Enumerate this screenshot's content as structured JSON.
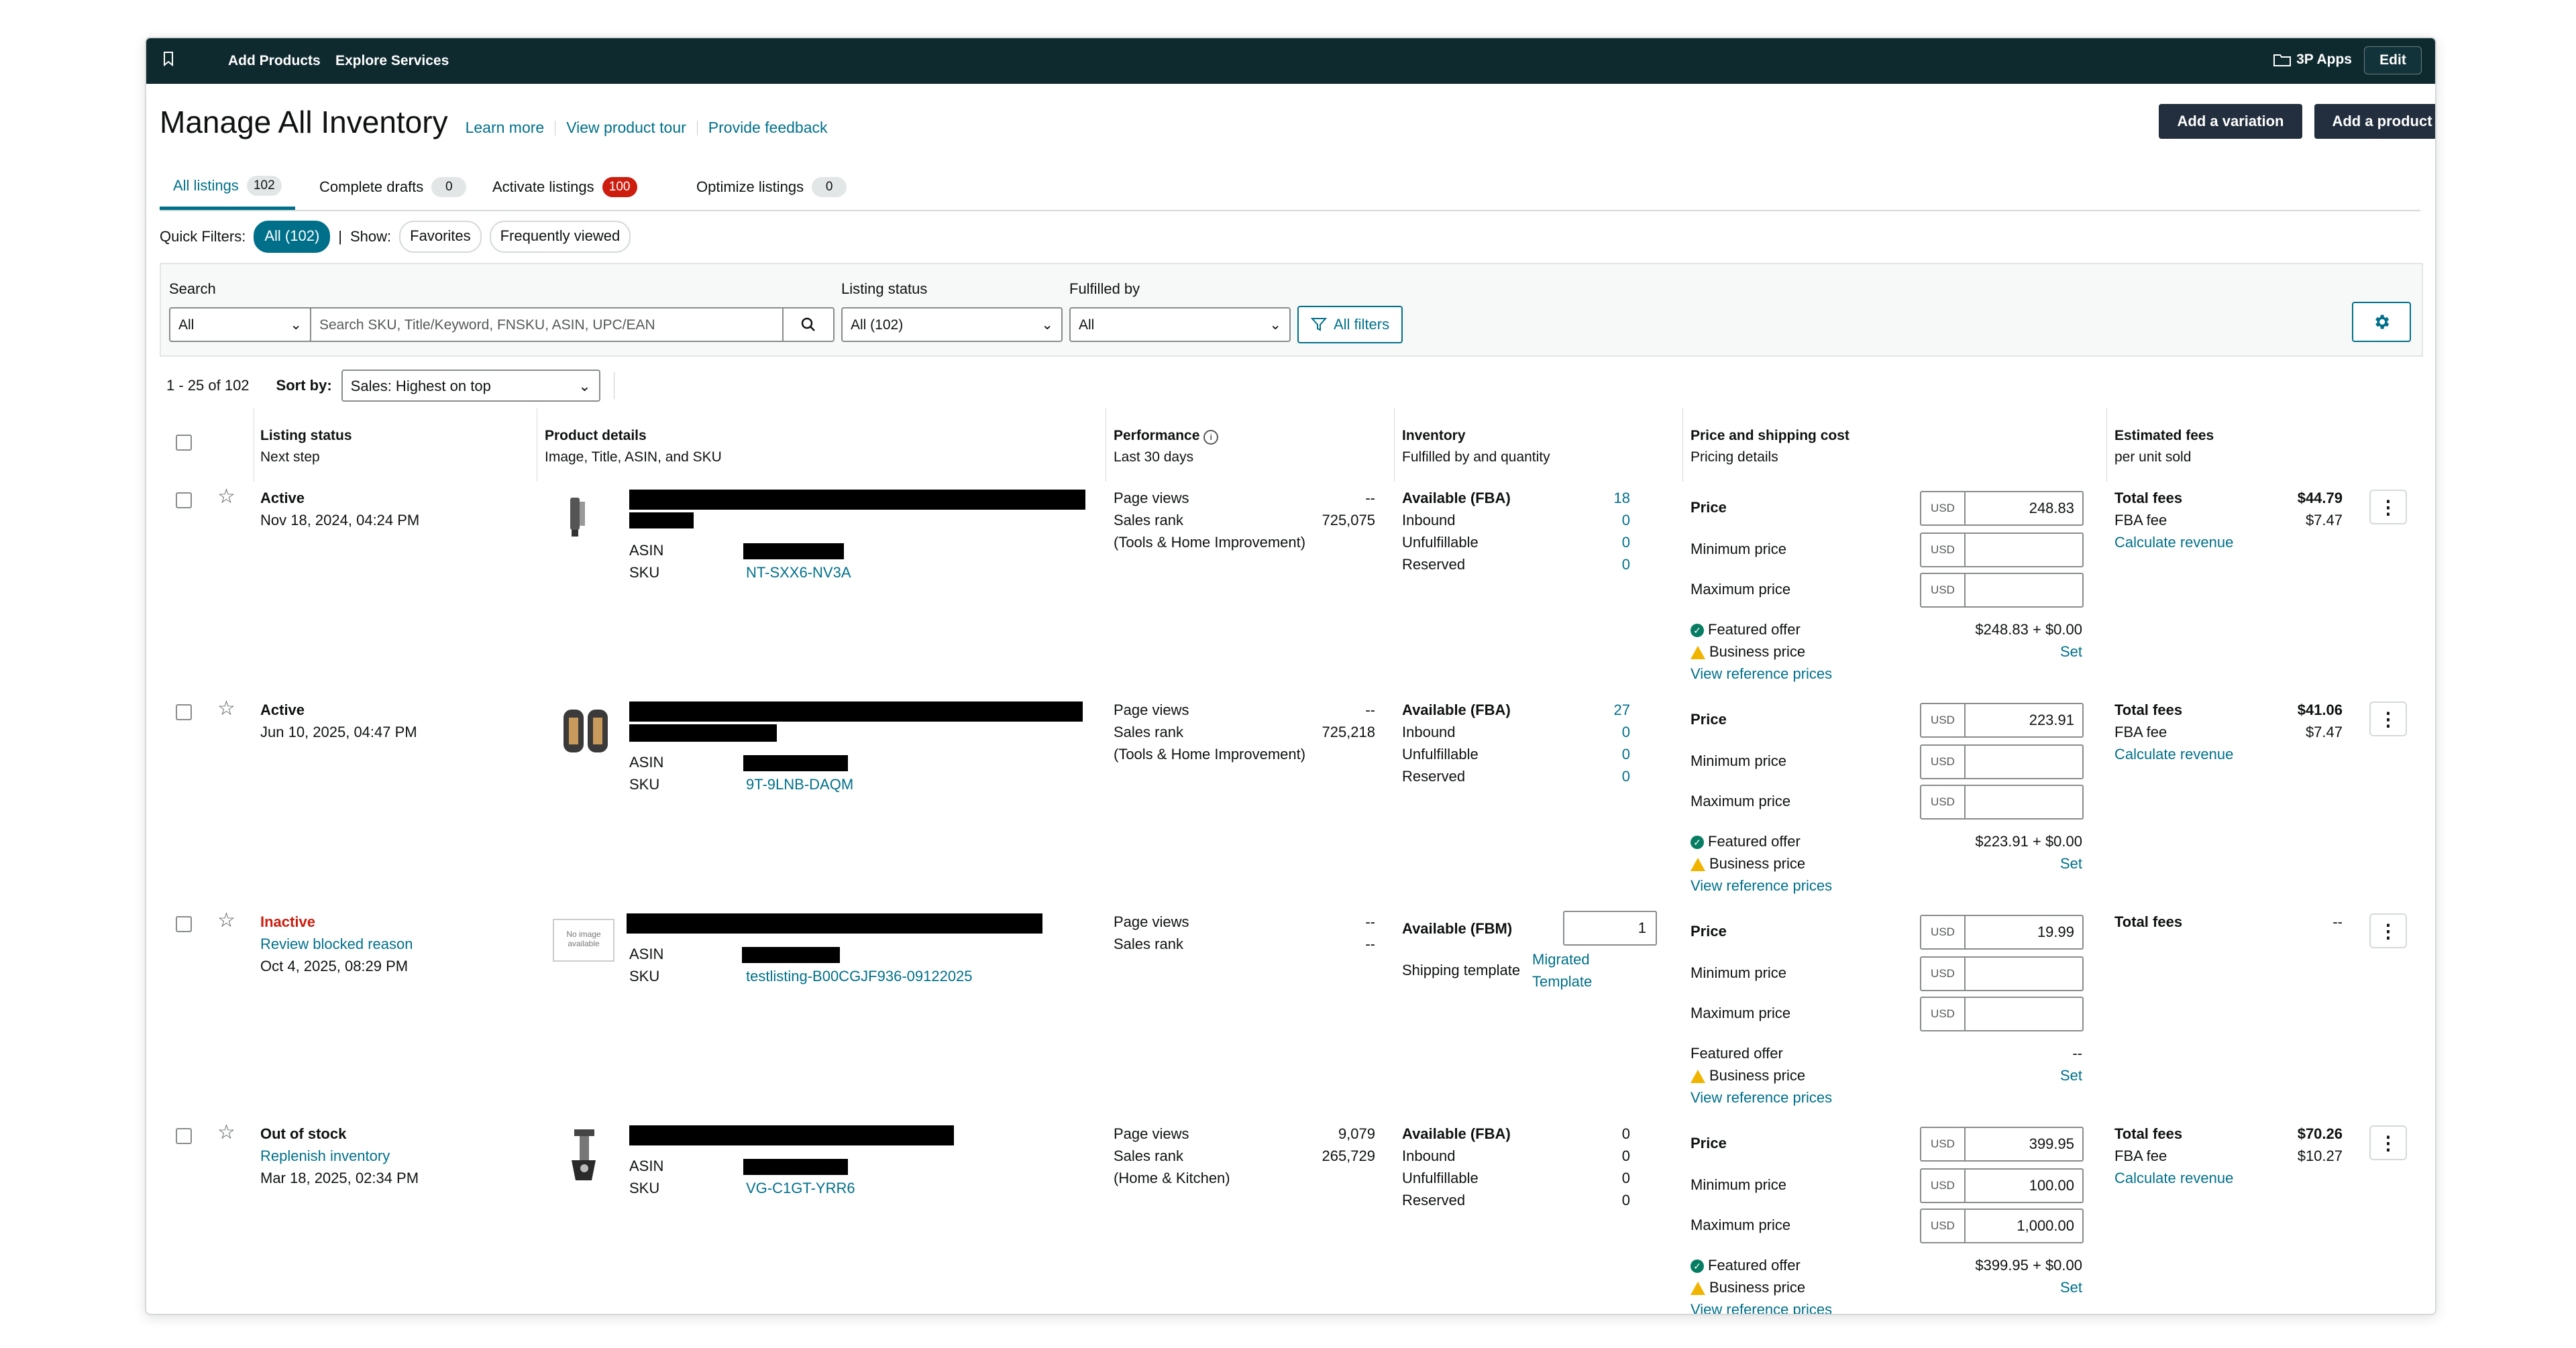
{
  "topbar": {
    "nav": [
      "Add Products",
      "Explore Services"
    ],
    "apps_label": "3P Apps",
    "edit_label": "Edit"
  },
  "header": {
    "title": "Manage All Inventory",
    "links": [
      "Learn more",
      "View product tour",
      "Provide feedback"
    ],
    "add_variation": "Add a variation",
    "add_product": "Add a product"
  },
  "tabs": [
    {
      "label": "All listings",
      "count": "102"
    },
    {
      "label": "Complete drafts",
      "count": "0"
    },
    {
      "label": "Activate listings",
      "count": "100"
    },
    {
      "label": "Optimize listings",
      "count": "0"
    }
  ],
  "quick_filters": {
    "label": "Quick Filters:",
    "all": "All (102)",
    "sep": "|",
    "show": "Show:",
    "favorites": "Favorites",
    "frequent": "Frequently viewed"
  },
  "filters": {
    "search_label": "Search",
    "search_scope": "All",
    "search_placeholder": "Search SKU, Title/Keyword, FNSKU, ASIN, UPC/EAN",
    "status_label": "Listing status",
    "status_value": "All (102)",
    "fulfilled_label": "Fulfilled by",
    "fulfilled_value": "All",
    "all_filters": "All filters"
  },
  "pager": {
    "range": "1 - 25 of 102",
    "sort_label": "Sort by:",
    "sort_value": "Sales: Highest on top"
  },
  "columns": {
    "status": {
      "title": "Listing status",
      "sub": "Next step"
    },
    "product": {
      "title": "Product details",
      "sub": "Image, Title, ASIN, and SKU"
    },
    "performance": {
      "title": "Performance",
      "sub": "Last 30 days"
    },
    "inventory": {
      "title": "Inventory",
      "sub": "Fulfilled by and quantity"
    },
    "price": {
      "title": "Price and shipping cost",
      "sub": "Pricing details"
    },
    "fees": {
      "title": "Estimated fees",
      "sub": "per unit sold"
    }
  },
  "labels": {
    "asin": "ASIN",
    "sku": "SKU",
    "page_views": "Page views",
    "sales_rank": "Sales rank",
    "inbound": "Inbound",
    "unfulfillable": "Unfulfillable",
    "reserved": "Reserved",
    "price": "Price",
    "min_price": "Minimum price",
    "max_price": "Maximum price",
    "featured_offer": "Featured offer",
    "business_price": "Business price",
    "set": "Set",
    "view_ref": "View reference prices",
    "total_fees": "Total fees",
    "fba_fee": "FBA fee",
    "calc_revenue": "Calculate revenue",
    "currency": "USD",
    "shipping_template": "Shipping template",
    "no_image": "No image available"
  },
  "rows": [
    {
      "status": "Active",
      "date": "Nov 18, 2024, 04:24 PM",
      "sku": "NT-SXX6-NV3A",
      "page_views": "--",
      "sales_rank": "725,075",
      "category": "(Tools & Home Improvement)",
      "fulfillment": "Available (FBA)",
      "available": "18",
      "inbound": "0",
      "unfulfillable": "0",
      "reserved": "0",
      "price": "248.83",
      "min_price": "",
      "max_price": "",
      "featured_offer": "$248.83 + $0.00",
      "total_fees": "$44.79",
      "fba_fee": "$7.47"
    },
    {
      "status": "Active",
      "date": "Jun 10, 2025, 04:47 PM",
      "sku": "9T-9LNB-DAQM",
      "page_views": "--",
      "sales_rank": "725,218",
      "category": "(Tools & Home Improvement)",
      "fulfillment": "Available (FBA)",
      "available": "27",
      "inbound": "0",
      "unfulfillable": "0",
      "reserved": "0",
      "price": "223.91",
      "min_price": "",
      "max_price": "",
      "featured_offer": "$223.91 + $0.00",
      "total_fees": "$41.06",
      "fba_fee": "$7.47"
    },
    {
      "status": "Inactive",
      "next_step": "Review blocked reason",
      "date": "Oct 4, 2025, 08:29 PM",
      "sku": "testlisting-B00CGJF936-09122025",
      "page_views": "--",
      "sales_rank": "--",
      "fulfillment": "Available (FBM)",
      "available": "1",
      "shipping_template_value": "Migrated Template",
      "price": "19.99",
      "min_price": "",
      "max_price": "",
      "featured_offer": "--",
      "total_fees": "--"
    },
    {
      "status": "Out of stock",
      "next_step": "Replenish inventory",
      "date": "Mar 18, 2025, 02:34 PM",
      "sku": "VG-C1GT-YRR6",
      "page_views": "9,079",
      "sales_rank": "265,729",
      "category": "(Home & Kitchen)",
      "fulfillment": "Available (FBA)",
      "available": "0",
      "inbound": "0",
      "unfulfillable": "0",
      "reserved": "0",
      "price": "399.95",
      "min_price": "100.00",
      "max_price": "1,000.00",
      "featured_offer": "$399.95 + $0.00",
      "total_fees": "$70.26",
      "fba_fee": "$10.27"
    }
  ]
}
